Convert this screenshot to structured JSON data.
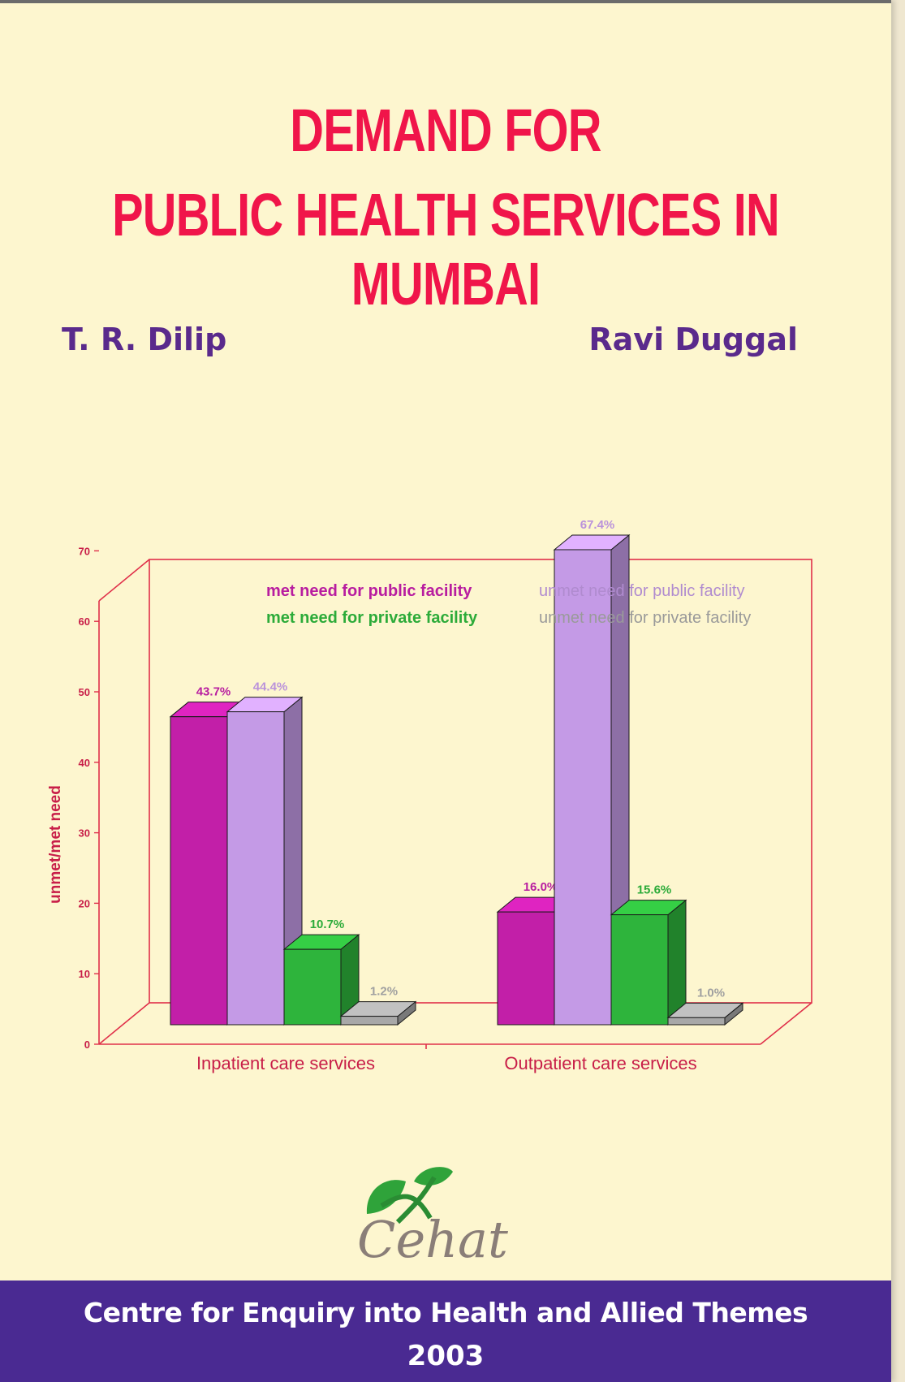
{
  "cover": {
    "title_line_1": "DEMAND FOR",
    "title_line_2": "PUBLIC HEALTH SERVICES IN MUMBAI",
    "authors": [
      "T. R. Dilip",
      "Ravi Duggal"
    ],
    "publisher_logo_text": "Cehat",
    "publisher_name": "Centre for Enquiry into Health and Allied Themes",
    "year": "2003"
  },
  "chart_data": {
    "type": "bar",
    "categories": [
      "Inpatient care services",
      "Outpatient care services"
    ],
    "ylabel": "unmet/met need",
    "ylim": [
      0,
      70
    ],
    "yticks": [
      "0",
      "10",
      "20",
      "30",
      "40",
      "50",
      "60",
      "70"
    ],
    "legend_placement": "top",
    "series": [
      {
        "name": "met need for public facility",
        "color": "#c21fa8",
        "values": [
          43.7,
          16.0
        ],
        "labels": [
          "43.7%",
          "16.0%"
        ]
      },
      {
        "name": "unmet need for public facility",
        "color": "#c49ae6",
        "values": [
          44.4,
          67.4
        ],
        "labels": [
          "44.4%",
          "67.4%"
        ]
      },
      {
        "name": "met need for private facility",
        "color": "#2eb43c",
        "values": [
          10.7,
          15.6
        ],
        "labels": [
          "10.7%",
          "15.6%"
        ]
      },
      {
        "name": "unmet need for private facility",
        "color": "#a8a8a8",
        "values": [
          1.2,
          1.0
        ],
        "labels": [
          "1.2%",
          "1.0%"
        ]
      }
    ],
    "colors": {
      "frame": "#e0304a",
      "axis_text": "#c81e48"
    }
  }
}
